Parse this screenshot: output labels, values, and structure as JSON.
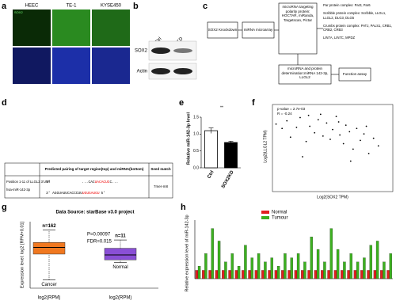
{
  "panels": {
    "a": {
      "label": "a",
      "columns": [
        "HEEC",
        "TE-1",
        "KYSE450"
      ],
      "stain": "SOX2"
    },
    "b": {
      "label": "b",
      "conditions": [
        "Ctrl",
        "SOX2KD"
      ],
      "bands": [
        "SOX2",
        "Actin"
      ]
    },
    "c": {
      "label": "c",
      "knockdown": "SOX2 Knockdown",
      "microarray": "miRNA microarray",
      "targeting": "microRNA targeting polarity protein: HOCTAR, miRanda, Targetscan, Pictar",
      "complexes": [
        "Par protein complex: Par3, Par6",
        "Scribble protein complex: Scribble, LLGL1, LLGL2, DLG3, DLG5",
        "Crumbs protein complex: PATJ, PALS1, CRB1, CRB2, CRB3",
        "LIN7A, LIN7C, MPDZ"
      ],
      "determination": "microRNA and protein determination:miRNA 142-3p, LLGL2",
      "assay": "Function assay"
    },
    "d": {
      "label": "d",
      "header": "Predicted pairing of target region(top) and miRNA(bottom)",
      "seed_header": "Seed match",
      "row_label_1": "Position 1-11 of LLGL2 3'UTR",
      "row_label_2": "hsa-miR-142-3p",
      "top_prefix": "5'",
      "top_black": "...CAC",
      "top_red": "UACACUC",
      "top_end": "C...",
      "bottom_prefix": "3' AGGUAUUCACCCUU",
      "bottom_red": "UGUGAUGU",
      "bottom_end": "5'",
      "seed": "7mer-m8"
    },
    "e": {
      "label": "e",
      "type": "bar",
      "ylabel": "Relative miR-142-3p level",
      "categories": [
        "Ctrl",
        "SOX2KD"
      ],
      "values": [
        1.1,
        0.75
      ],
      "errors": [
        0.08,
        0.04
      ],
      "colors": [
        "#ffffff",
        "#000000"
      ],
      "ylim": [
        0,
        1.5
      ],
      "yticks": [
        {
          "value": 0,
          "label": "0.0"
        },
        {
          "value": 0.5,
          "label": "0.5"
        },
        {
          "value": 1,
          "label": "1.0"
        },
        {
          "value": 1.5,
          "label": "1.5"
        }
      ],
      "significance": "**"
    },
    "f": {
      "label": "f",
      "type": "scatter",
      "stats_p": "p-value = 2.7e-03",
      "stats_r": "R = -0.24",
      "xlabel": "Log2(SOX2 TPM)",
      "ylabel": "Log2(LLGL2 TPM)",
      "xlim": [
        0,
        10
      ],
      "ylim": [
        0,
        8
      ],
      "x": [
        0.3,
        0.8,
        1.2,
        1.5,
        2.0,
        2.3,
        2.8,
        3.1,
        3.5,
        3.8,
        4.2,
        4.5,
        4.8,
        5.0,
        5.3,
        5.6,
        5.9,
        6.1,
        6.4,
        6.7,
        7.0,
        7.3,
        7.6,
        8.0,
        8.4,
        8.8,
        2.5,
        4.0,
        5.5,
        6.5,
        3.0,
        7.8
      ],
      "y": [
        6.2,
        5.8,
        6.5,
        5.0,
        5.9,
        6.8,
        4.6,
        6.0,
        5.4,
        6.6,
        5.1,
        6.3,
        4.8,
        5.7,
        6.9,
        5.2,
        4.4,
        6.1,
        5.5,
        3.9,
        5.8,
        4.7,
        5.3,
        3.5,
        4.9,
        4.2,
        3.2,
        7.1,
        6.4,
        2.8,
        7.0,
        6.0
      ],
      "color": "#000000"
    },
    "g": {
      "label": "g",
      "type": "box",
      "title": "Data Source: starBase v3.0 project",
      "ylabel": "Expression level: log2 [RPM+0.01]",
      "xlabel": "log2(RPM)",
      "p": "P=0.00097",
      "fdr": "FDR=0.015",
      "ylim": [
        0,
        16
      ],
      "boxes": [
        {
          "name": "Cancer",
          "n": "n=162",
          "color": "#f07820",
          "min": 2,
          "q1": 8.2,
          "median": 9.8,
          "q3": 11,
          "max": 14
        },
        {
          "name": "Normal",
          "n": "n=11",
          "color": "#8a4fd6",
          "min": 6.2,
          "q1": 6.8,
          "median": 8,
          "q3": 9.6,
          "max": 11.6
        }
      ]
    },
    "h": {
      "label": "h",
      "type": "bar",
      "ylabel": "Relative expression level of miR-142-3p",
      "ylim": [
        0,
        7
      ],
      "categories": [
        null,
        null,
        null,
        null,
        null,
        null,
        null,
        null,
        null,
        null,
        null,
        null,
        null,
        null,
        null,
        null,
        null,
        null,
        null,
        null,
        null,
        null,
        null,
        null,
        null,
        null,
        null,
        null,
        null,
        null
      ],
      "series": [
        {
          "name": "Normal",
          "color": "#e02020",
          "values": [
            1,
            1,
            1,
            1,
            1,
            1,
            1,
            1,
            1,
            1,
            1,
            1,
            1,
            1,
            1,
            1,
            1,
            1,
            1,
            1,
            1,
            1,
            1,
            1,
            1,
            1,
            1,
            1,
            1,
            1
          ]
        },
        {
          "name": "Tumour",
          "color": "#3cb020",
          "values": [
            1.5,
            3,
            6,
            4.5,
            2,
            3,
            1.5,
            4,
            2.5,
            3,
            2,
            2.5,
            1.5,
            3,
            2.5,
            3,
            2,
            5,
            3.5,
            2,
            6,
            3.5,
            2,
            3,
            2,
            2.5,
            4,
            4.5,
            2,
            3
          ]
        }
      ]
    }
  }
}
